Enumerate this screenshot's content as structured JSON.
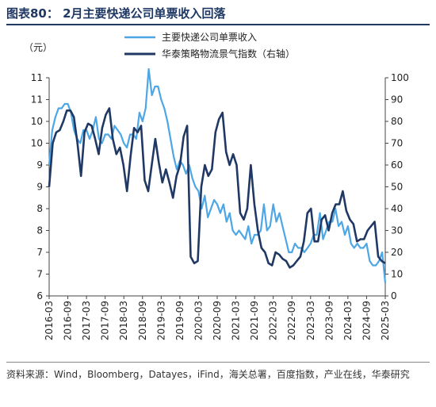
{
  "figure": {
    "title": "图表80：  2月主要快递公司单票收入回落",
    "source": "资料来源：Wind，Bloomberg，Datayes，iFind，海关总署，百度指数，产业在线，华泰研究"
  },
  "chart_data": {
    "type": "line",
    "y_left_unit": "（元）",
    "y_left_ticks": [
      "11",
      "11",
      "10",
      "10",
      "9",
      "9",
      "8",
      "8",
      "7",
      "7",
      "6"
    ],
    "y_left_range": [
      6,
      11
    ],
    "y_right_range": [
      0,
      100
    ],
    "y_right_ticks": [
      "100",
      "90",
      "80",
      "70",
      "60",
      "50",
      "40",
      "30",
      "20",
      "10",
      "0"
    ],
    "x_ticks": [
      "2016-03",
      "2016-09",
      "2017-03",
      "2017-09",
      "2018-03",
      "2018-09",
      "2019-03",
      "2019-09",
      "2020-03",
      "2020-09",
      "2021-03",
      "2021-09",
      "2022-03",
      "2022-09",
      "2023-03",
      "2023-09",
      "2024-03",
      "2024-09",
      "2025-03"
    ],
    "x_range_months": [
      0,
      108
    ],
    "legend_position": "top-center",
    "grid": false,
    "series": [
      {
        "name": "主要快递公司单票收入",
        "axis": "left",
        "color": "#4da6e6",
        "values": [
          9.0,
          9.8,
          10.1,
          10.3,
          10.3,
          10.4,
          10.4,
          10.2,
          9.8,
          9.6,
          9.5,
          9.8,
          9.8,
          9.6,
          9.8,
          10.1,
          9.6,
          9.5,
          9.7,
          9.7,
          9.6,
          9.9,
          9.8,
          9.7,
          9.5,
          9.4,
          9.7,
          9.7,
          9.6,
          10.2,
          10.0,
          10.3,
          11.2,
          10.6,
          10.8,
          10.8,
          10.5,
          10.3,
          10.0,
          9.6,
          9.2,
          8.9,
          9.1,
          9.0,
          8.8,
          9.0,
          8.7,
          8.5,
          8.4,
          8.0,
          8.3,
          7.8,
          8.0,
          8.2,
          8.1,
          7.9,
          8.1,
          7.7,
          7.9,
          7.5,
          7.4,
          7.5,
          7.4,
          7.3,
          7.6,
          7.2,
          7.4,
          7.4,
          7.5,
          8.1,
          7.5,
          7.6,
          8.1,
          7.7,
          7.9,
          7.6,
          7.3,
          7.0,
          7.0,
          7.2,
          7.1,
          7.1,
          7.0,
          7.1,
          7.2,
          7.4,
          7.4,
          7.9,
          7.3,
          7.5,
          7.7,
          7.7,
          8.0,
          7.6,
          7.7,
          7.4,
          7.6,
          7.2,
          7.1,
          7.2,
          7.1,
          7.1,
          7.2,
          6.8,
          6.7,
          6.7,
          6.8,
          7.0,
          6.3
        ],
        "start": "2016-03"
      },
      {
        "name": "华泰策略物流景气指数（右轴）",
        "axis": "right",
        "color": "#1f3864",
        "values": [
          50,
          70,
          75,
          76,
          80,
          85,
          85,
          82,
          70,
          55,
          75,
          79,
          78,
          72,
          65,
          77,
          83,
          86,
          72,
          65,
          68,
          60,
          48,
          64,
          77,
          75,
          78,
          53,
          48,
          60,
          72,
          61,
          52,
          58,
          52,
          45,
          55,
          60,
          73,
          78,
          18,
          15,
          16,
          50,
          60,
          55,
          58,
          75,
          81,
          84,
          66,
          60,
          65,
          60,
          38,
          35,
          40,
          60,
          42,
          30,
          22,
          20,
          15,
          14,
          20,
          19,
          17,
          16,
          13,
          14,
          16,
          18,
          25,
          38,
          40,
          25,
          25,
          35,
          37,
          30,
          38,
          42,
          42,
          48,
          39,
          35,
          33,
          25,
          26,
          26,
          30,
          32,
          34,
          18,
          16,
          15
        ],
        "start": "2016-03"
      }
    ]
  }
}
